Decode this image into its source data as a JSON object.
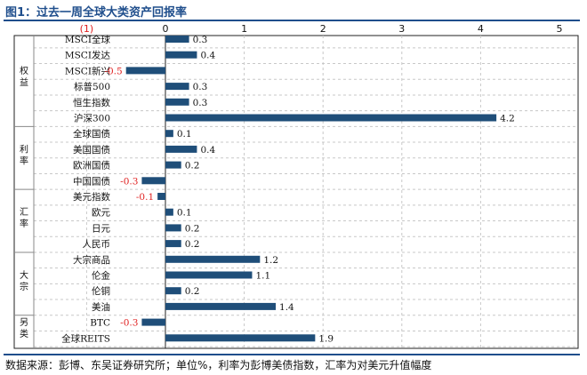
{
  "figure": {
    "title": "图1：过去一周全球大类资产回报率",
    "source": "数据来源：彭博、东吴证券研究所；单位%，利率为彭博美债指数，汇率为对美元升值幅度"
  },
  "chart_data": {
    "type": "bar",
    "orientation": "horizontal",
    "title": "",
    "xlim": [
      -1,
      5
    ],
    "x_ticks": [
      {
        "value": -1,
        "label": "(1)"
      },
      {
        "value": 0,
        "label": "0"
      },
      {
        "value": 1,
        "label": "1"
      },
      {
        "value": 2,
        "label": "2"
      },
      {
        "value": 3,
        "label": "3"
      },
      {
        "value": 4,
        "label": "4"
      },
      {
        "value": 5,
        "label": "5"
      }
    ],
    "categories": [
      "MSCI全球",
      "MSCI发达",
      "MSCI新兴",
      "标普500",
      "恒生指数",
      "沪深300",
      "全球国债",
      "美国国债",
      "欧洲国债",
      "中国国债",
      "美元指数",
      "欧元",
      "日元",
      "人民币",
      "大宗商品",
      "伦金",
      "伦铜",
      "美油",
      "BTC",
      "全球REITS"
    ],
    "values": [
      0.3,
      0.4,
      -0.5,
      0.3,
      0.3,
      4.2,
      0.1,
      0.4,
      0.2,
      -0.3,
      -0.1,
      0.1,
      0.2,
      0.2,
      1.2,
      1.1,
      0.2,
      1.4,
      -0.3,
      1.9
    ],
    "groups": [
      {
        "label": "权益",
        "start": 0,
        "end": 5
      },
      {
        "label": "利率",
        "start": 6,
        "end": 9
      },
      {
        "label": "汇率",
        "start": 10,
        "end": 13
      },
      {
        "label": "大宗",
        "start": 14,
        "end": 17
      },
      {
        "label": "另类",
        "start": 18,
        "end": 19
      }
    ],
    "colors": {
      "bar": "#1f4e79",
      "negative_label": "#e02020",
      "tick_negative": "#e02020",
      "text": "#111111",
      "grid": "#c8c8c8"
    },
    "grid": "vertical-dashed"
  }
}
